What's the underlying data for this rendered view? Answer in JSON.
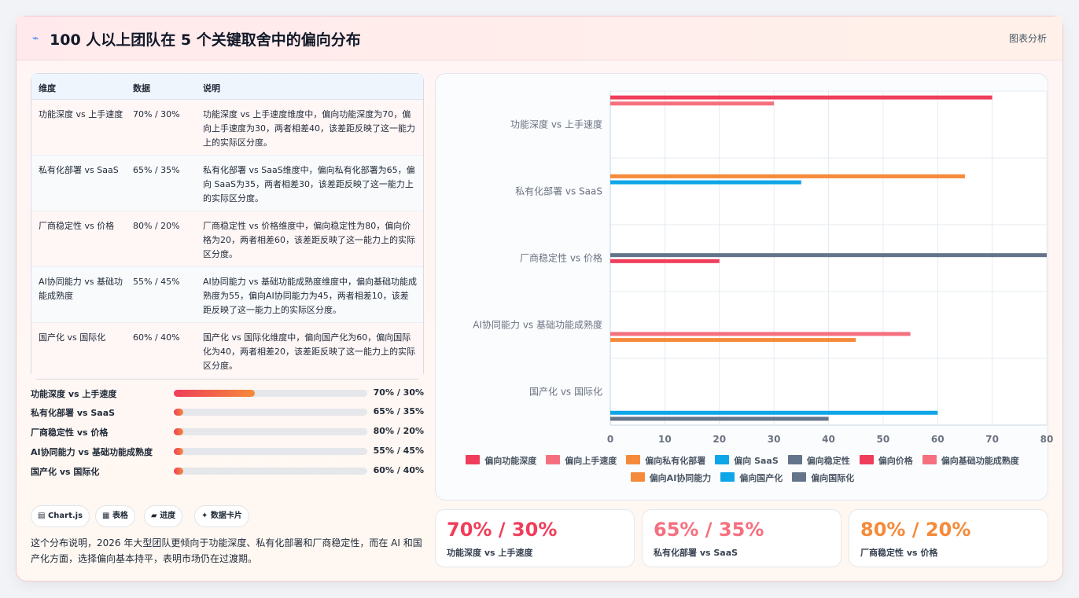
{
  "header": {
    "title_icon": "⌁",
    "title": "100 人以上团队在 5 个关键取舍中的偏向分布",
    "analysis_label": "图表分析"
  },
  "table": {
    "headers": [
      "维度",
      "数据",
      "说明"
    ],
    "rows": [
      {
        "dim": "功能深度 vs 上手速度",
        "data": "70% / 30%",
        "desc": "功能深度 vs 上手速度维度中，偏向功能深度为70，偏向上手速度为30，两者相差40，该差距反映了这一能力上的实际区分度。"
      },
      {
        "dim": "私有化部署 vs SaaS",
        "data": "65% / 35%",
        "desc": "私有化部署 vs SaaS维度中，偏向私有化部署为65，偏向 SaaS为35，两者相差30，该差距反映了这一能力上的实际区分度。"
      },
      {
        "dim": "厂商稳定性 vs 价格",
        "data": "80% / 20%",
        "desc": "厂商稳定性 vs 价格维度中，偏向稳定性为80，偏向价格为20，两者相差60，该差距反映了这一能力上的实际区分度。"
      },
      {
        "dim": "AI协同能力 vs 基础功能成熟度",
        "data": "55% / 45%",
        "desc": "AI协同能力 vs 基础功能成熟度维度中，偏向基础功能成熟度为55，偏向AI协同能力为45，两者相差10，该差距反映了这一能力上的实际区分度。"
      },
      {
        "dim": "国产化 vs 国际化",
        "data": "60% / 40%",
        "desc": "国产化 vs 国际化维度中，偏向国产化为60，偏向国际化为40，两者相差20，该差距反映了这一能力上的实际区分度。"
      }
    ]
  },
  "progress": [
    {
      "label": "功能深度 vs 上手速度",
      "value": "70% / 30%",
      "fill": 0.42
    },
    {
      "label": "私有化部署 vs SaaS",
      "value": "65% / 35%",
      "fill": 0.05
    },
    {
      "label": "厂商稳定性 vs 价格",
      "value": "80% / 20%",
      "fill": 0.05
    },
    {
      "label": "AI协同能力 vs 基础功能成熟度",
      "value": "55% / 45%",
      "fill": 0.05
    },
    {
      "label": "国产化 vs 国际化",
      "value": "60% / 40%",
      "fill": 0.05
    }
  ],
  "tags": [
    {
      "icon": "▤",
      "label": "Chart.js"
    },
    {
      "icon": "▦",
      "label": "表格"
    },
    {
      "icon": "▰",
      "label": "进度"
    },
    {
      "icon": "✦",
      "label": "数据卡片"
    }
  ],
  "summary": "这个分布说明，2026 年大型团队更倾向于功能深度、私有化部署和厂商稳定性，而在 AI 和国产化方面，选择偏向基本持平，表明市场仍在过渡期。",
  "chart_data": {
    "type": "bar",
    "orientation": "horizontal",
    "categories": [
      "功能深度 vs 上手速度",
      "私有化部署 vs SaaS",
      "厂商稳定性 vs 价格",
      "AI协同能力 vs 基础功能成熟度",
      "国产化 vs 国际化"
    ],
    "xlim": [
      0,
      80
    ],
    "xticks": [
      "0",
      "10",
      "20",
      "30",
      "40",
      "50",
      "60",
      "70",
      "80"
    ],
    "grid": true,
    "legend_position": "bottom",
    "series": [
      {
        "name": "偏向功能深度",
        "color": "#ef3e5b",
        "values": [
          70,
          null,
          null,
          null,
          null
        ]
      },
      {
        "name": "偏向上手速度",
        "color": "#f5707f",
        "values": [
          30,
          null,
          null,
          null,
          null
        ]
      },
      {
        "name": "偏向私有化部署",
        "color": "#f58a3a",
        "values": [
          null,
          65,
          null,
          null,
          null
        ]
      },
      {
        "name": "偏向 SaaS",
        "color": "#0ea5e9",
        "values": [
          null,
          35,
          null,
          null,
          null
        ]
      },
      {
        "name": "偏向稳定性",
        "color": "#64748b",
        "values": [
          null,
          null,
          80,
          null,
          null
        ]
      },
      {
        "name": "偏向价格",
        "color": "#ef3e5b",
        "values": [
          null,
          null,
          20,
          null,
          null
        ]
      },
      {
        "name": "偏向基础功能成熟度",
        "color": "#f5707f",
        "values": [
          null,
          null,
          null,
          55,
          null
        ]
      },
      {
        "name": "偏向AI协同能力",
        "color": "#f58a3a",
        "values": [
          null,
          null,
          null,
          45,
          null
        ]
      },
      {
        "name": "偏向国产化",
        "color": "#0ea5e9",
        "values": [
          null,
          null,
          null,
          null,
          60
        ]
      },
      {
        "name": "偏向国际化",
        "color": "#64748b",
        "values": [
          null,
          null,
          null,
          null,
          40
        ]
      }
    ]
  },
  "stat_cards": [
    {
      "value": "70% / 30%",
      "label": "功能深度 vs 上手速度",
      "color": "#ef3e5b"
    },
    {
      "value": "65% / 35%",
      "label": "私有化部署 vs SaaS",
      "color": "#f5707f"
    },
    {
      "value": "80% / 20%",
      "label": "厂商稳定性 vs 价格",
      "color": "#f58a3a"
    }
  ]
}
